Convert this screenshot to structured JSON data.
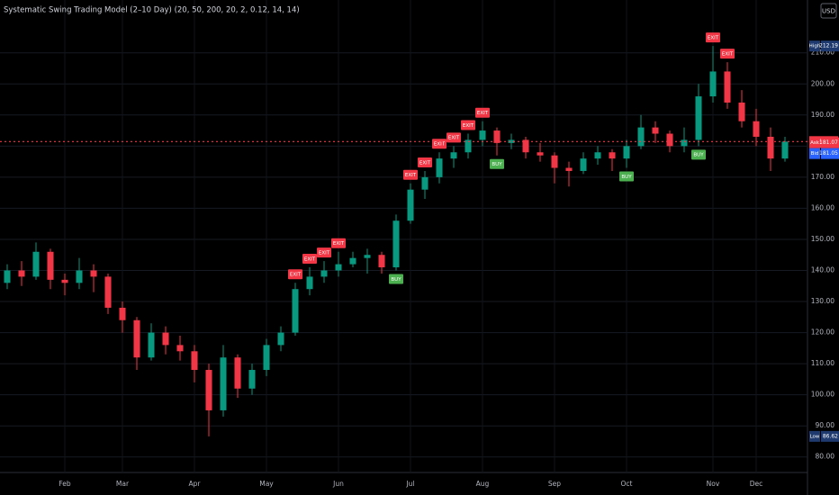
{
  "chart_data": {
    "type": "candlestick",
    "title": "Systematic Swing Trading Model (2–10 Day) (20, 50, 200, 20, 2, 0.12, 14, 14)",
    "currency": "USD",
    "up_color": "#089981",
    "down_color": "#f23645",
    "ylim": [
      75,
      227
    ],
    "yticks": [
      {
        "value": 80,
        "label": "80.00"
      },
      {
        "value": 90,
        "label": "90.00"
      },
      {
        "value": 100,
        "label": "100.00"
      },
      {
        "value": 110,
        "label": "110.00"
      },
      {
        "value": 120,
        "label": "120.00"
      },
      {
        "value": 130,
        "label": "130.00"
      },
      {
        "value": 140,
        "label": "140.00"
      },
      {
        "value": 150,
        "label": "150.00"
      },
      {
        "value": 160,
        "label": "160.00"
      },
      {
        "value": 170,
        "label": "170.00"
      },
      {
        "value": 180,
        "label": "180.00"
      },
      {
        "value": 190,
        "label": "190.00"
      },
      {
        "value": 200,
        "label": "200.00"
      },
      {
        "value": 210,
        "label": "210.00"
      }
    ],
    "grid": true,
    "last_price": 181.46,
    "last_color": "#f23645",
    "price_tags": [
      {
        "name": "High",
        "value": 212.19,
        "color": "#1e3a6e"
      },
      {
        "name": "Ask",
        "value": 181.07,
        "color": "#f23645"
      },
      {
        "name": "Bid",
        "value": 181.05,
        "color": "#2962ff"
      },
      {
        "name": "Low",
        "value": 86.62,
        "color": "#1e3a6e"
      }
    ],
    "signal_colors": {
      "EXIT": "#f23645",
      "BUY": "#4caf50"
    },
    "candles": [
      {
        "o": 136,
        "h": 142,
        "l": 134,
        "c": 140
      },
      {
        "o": 140,
        "h": 143,
        "l": 135,
        "c": 138
      },
      {
        "o": 138,
        "h": 149,
        "l": 137,
        "c": 146
      },
      {
        "o": 146,
        "h": 147,
        "l": 134,
        "c": 137
      },
      {
        "o": 137,
        "h": 139,
        "l": 132,
        "c": 136,
        "month": "Feb"
      },
      {
        "o": 136,
        "h": 144,
        "l": 134,
        "c": 140
      },
      {
        "o": 140,
        "h": 142,
        "l": 133,
        "c": 138
      },
      {
        "o": 138,
        "h": 139,
        "l": 126,
        "c": 128
      },
      {
        "o": 128,
        "h": 130,
        "l": 120,
        "c": 124,
        "month": "Mar"
      },
      {
        "o": 124,
        "h": 125,
        "l": 108,
        "c": 112
      },
      {
        "o": 112,
        "h": 123,
        "l": 111,
        "c": 120
      },
      {
        "o": 120,
        "h": 122,
        "l": 113,
        "c": 116
      },
      {
        "o": 116,
        "h": 119,
        "l": 111,
        "c": 114
      },
      {
        "o": 114,
        "h": 116,
        "l": 104,
        "c": 108,
        "month": "Apr"
      },
      {
        "o": 108,
        "h": 110,
        "l": 86.62,
        "c": 95
      },
      {
        "o": 95,
        "h": 116,
        "l": 93,
        "c": 112
      },
      {
        "o": 112,
        "h": 113,
        "l": 99,
        "c": 102
      },
      {
        "o": 102,
        "h": 110,
        "l": 100,
        "c": 108
      },
      {
        "o": 108,
        "h": 118,
        "l": 106,
        "c": 116,
        "month": "May"
      },
      {
        "o": 116,
        "h": 122,
        "l": 114,
        "c": 120
      },
      {
        "o": 120,
        "h": 136,
        "l": 119,
        "c": 134,
        "signal": "EXIT"
      },
      {
        "o": 134,
        "h": 141,
        "l": 132,
        "c": 138,
        "signal": "EXIT"
      },
      {
        "o": 138,
        "h": 143,
        "l": 136,
        "c": 140,
        "signal": "EXIT"
      },
      {
        "o": 140,
        "h": 146,
        "l": 138,
        "c": 142,
        "month": "Jun",
        "signal": "EXIT"
      },
      {
        "o": 142,
        "h": 146,
        "l": 141,
        "c": 144
      },
      {
        "o": 144,
        "h": 147,
        "l": 139,
        "c": 145
      },
      {
        "o": 145,
        "h": 146,
        "l": 139,
        "c": 141
      },
      {
        "o": 141,
        "h": 158,
        "l": 140,
        "c": 156,
        "signal": "BUY"
      },
      {
        "o": 156,
        "h": 168,
        "l": 155,
        "c": 166,
        "month": "Jul",
        "signal": "EXIT"
      },
      {
        "o": 166,
        "h": 172,
        "l": 163,
        "c": 170,
        "signal": "EXIT"
      },
      {
        "o": 170,
        "h": 178,
        "l": 168,
        "c": 176,
        "signal": "EXIT"
      },
      {
        "o": 176,
        "h": 180,
        "l": 173,
        "c": 178,
        "signal": "EXIT"
      },
      {
        "o": 178,
        "h": 184,
        "l": 176,
        "c": 182,
        "signal": "EXIT"
      },
      {
        "o": 182,
        "h": 188,
        "l": 180,
        "c": 185,
        "month": "Aug",
        "signal": "EXIT"
      },
      {
        "o": 185,
        "h": 186,
        "l": 177,
        "c": 181,
        "signal": "BUY"
      },
      {
        "o": 181,
        "h": 184,
        "l": 179,
        "c": 182
      },
      {
        "o": 182,
        "h": 183,
        "l": 176,
        "c": 178
      },
      {
        "o": 178,
        "h": 181,
        "l": 175,
        "c": 177
      },
      {
        "o": 177,
        "h": 178,
        "l": 168,
        "c": 173,
        "month": "Sep"
      },
      {
        "o": 173,
        "h": 175,
        "l": 167,
        "c": 172
      },
      {
        "o": 172,
        "h": 178,
        "l": 171,
        "c": 176
      },
      {
        "o": 176,
        "h": 180,
        "l": 174,
        "c": 178
      },
      {
        "o": 178,
        "h": 179,
        "l": 172,
        "c": 176
      },
      {
        "o": 176,
        "h": 182,
        "l": 173,
        "c": 180,
        "month": "Oct",
        "signal": "BUY"
      },
      {
        "o": 180,
        "h": 190,
        "l": 179,
        "c": 186
      },
      {
        "o": 186,
        "h": 188,
        "l": 181,
        "c": 184
      },
      {
        "o": 184,
        "h": 185,
        "l": 178,
        "c": 180
      },
      {
        "o": 180,
        "h": 186,
        "l": 178,
        "c": 182
      },
      {
        "o": 182,
        "h": 200,
        "l": 180,
        "c": 196,
        "signal": "BUY"
      },
      {
        "o": 196,
        "h": 212.19,
        "l": 194,
        "c": 204,
        "month": "Nov",
        "signal": "EXIT"
      },
      {
        "o": 204,
        "h": 207,
        "l": 192,
        "c": 194,
        "signal": "EXIT"
      },
      {
        "o": 194,
        "h": 198,
        "l": 186,
        "c": 188
      },
      {
        "o": 188,
        "h": 192,
        "l": 180,
        "c": 183,
        "month": "Dec"
      },
      {
        "o": 183,
        "h": 186,
        "l": 172,
        "c": 176
      },
      {
        "o": 176,
        "h": 183,
        "l": 175,
        "c": 181.46
      }
    ]
  }
}
